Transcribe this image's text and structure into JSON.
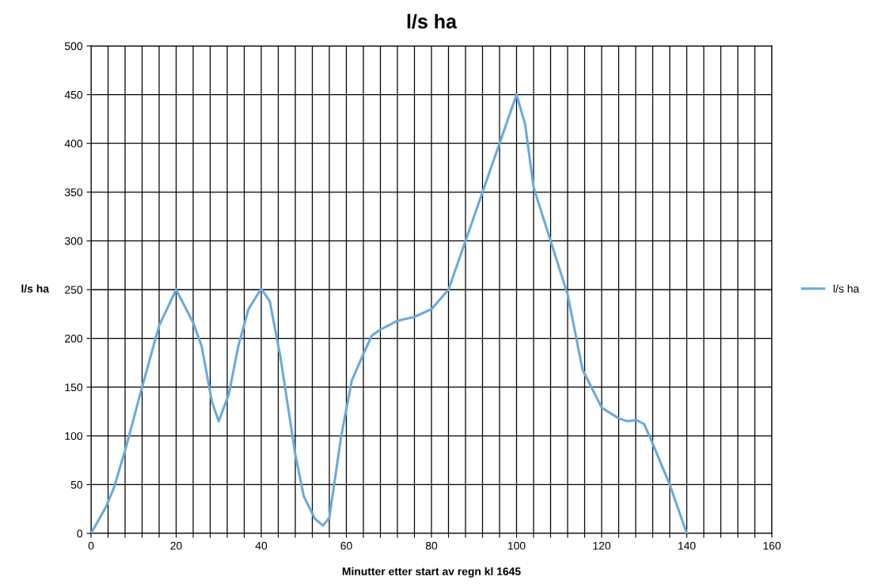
{
  "chart_data": {
    "type": "line",
    "title": "l/s ha",
    "xlabel": "Minutter etter start av regn kl 1645",
    "ylabel": "l/s ha",
    "x": [
      0,
      3.5,
      5.4,
      8,
      12,
      16,
      20,
      24,
      26,
      28.4,
      30,
      32.4,
      34.6,
      37,
      40,
      42,
      44.5,
      48,
      50,
      52.6,
      54.5,
      56,
      58.8,
      61.3,
      64,
      66,
      68,
      72,
      76,
      80,
      84,
      88,
      92,
      96,
      100,
      102,
      104,
      108,
      112,
      115.5,
      120,
      124,
      126,
      128.3,
      130,
      131.7,
      136,
      140
    ],
    "series": [
      {
        "name": "l/s ha",
        "color": "#6aaadb",
        "values": [
          0,
          27,
          47,
          85,
          150,
          213,
          250,
          216,
          192,
          135,
          115,
          143,
          192,
          230,
          251,
          238,
          181,
          81,
          38,
          15,
          8,
          16,
          100,
          157,
          184,
          203,
          209,
          218,
          222,
          230,
          250,
          300,
          350,
          400,
          450,
          420,
          355,
          300,
          245,
          168,
          129,
          118,
          115,
          116,
          112,
          95,
          50,
          0
        ]
      }
    ],
    "xlim": [
      0,
      160
    ],
    "xticks": [
      0,
      {
        "value": 4,
        "label": null
      },
      {
        "value": 8,
        "label": null
      },
      {
        "value": 12,
        "label": null
      },
      {
        "value": 16,
        "label": null
      },
      20,
      {
        "value": 24,
        "label": null
      },
      {
        "value": 28,
        "label": null
      },
      {
        "value": 32,
        "label": null
      },
      {
        "value": 36,
        "label": null
      },
      40,
      {
        "value": 44,
        "label": null
      },
      {
        "value": 48,
        "label": null
      },
      {
        "value": 52,
        "label": null
      },
      {
        "value": 56,
        "label": null
      },
      60,
      {
        "value": 64,
        "label": null
      },
      {
        "value": 68,
        "label": null
      },
      {
        "value": 72,
        "label": null
      },
      {
        "value": 76,
        "label": null
      },
      80,
      {
        "value": 84,
        "label": null
      },
      {
        "value": 88,
        "label": null
      },
      {
        "value": 92,
        "label": null
      },
      {
        "value": 96,
        "label": null
      },
      100,
      {
        "value": 104,
        "label": null
      },
      {
        "value": 108,
        "label": null
      },
      {
        "value": 112,
        "label": null
      },
      {
        "value": 116,
        "label": null
      },
      120,
      {
        "value": 124,
        "label": null
      },
      {
        "value": 128,
        "label": null
      },
      {
        "value": 132,
        "label": null
      },
      {
        "value": 136,
        "label": null
      },
      140,
      {
        "value": 144,
        "label": null
      },
      {
        "value": 148,
        "label": null
      },
      {
        "value": 152,
        "label": null
      },
      {
        "value": 156,
        "label": null
      },
      160
    ],
    "ylim": [
      0,
      500
    ],
    "yticks": [
      0,
      50,
      100,
      150,
      200,
      250,
      300,
      350,
      400,
      450,
      500
    ],
    "grid": true,
    "legend": "right",
    "marker": "none",
    "line_style": "solid"
  }
}
